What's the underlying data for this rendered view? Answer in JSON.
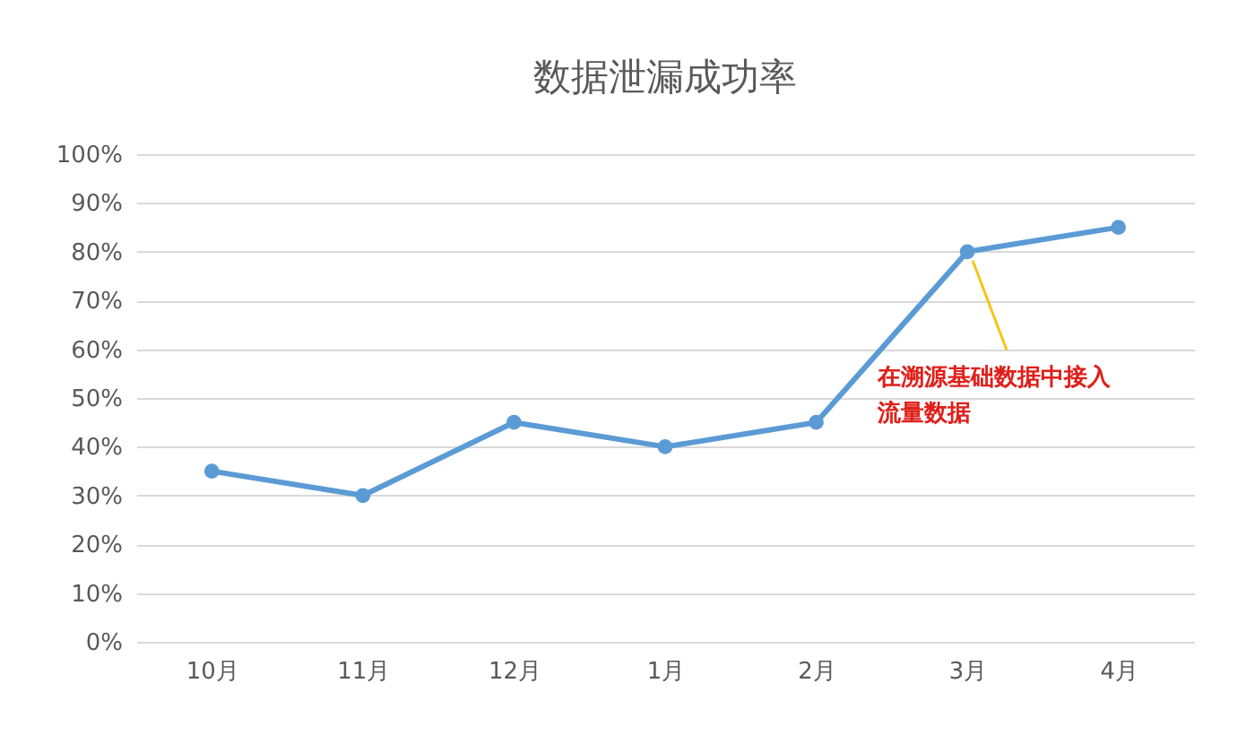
{
  "chart_data": {
    "type": "line",
    "title": "数据泄漏成功率",
    "categories": [
      "10月",
      "11月",
      "12月",
      "1月",
      "2月",
      "3月",
      "4月"
    ],
    "series": [
      {
        "color": "#5b9bd5",
        "values": [
          35,
          30,
          45,
          40,
          45,
          80,
          85
        ]
      }
    ],
    "ylim": [
      0,
      100
    ],
    "yticks": [
      {
        "value": 0,
        "label": "0%"
      },
      {
        "value": 10,
        "label": "10%"
      },
      {
        "value": 20,
        "label": "20%"
      },
      {
        "value": 30,
        "label": "30%"
      },
      {
        "value": 40,
        "label": "40%"
      },
      {
        "value": 50,
        "label": "50%"
      },
      {
        "value": 60,
        "label": "60%"
      },
      {
        "value": 70,
        "label": "70%"
      },
      {
        "value": 80,
        "label": "80%"
      },
      {
        "value": 90,
        "label": "90%"
      },
      {
        "value": 100,
        "label": "100%"
      }
    ],
    "grid": "y",
    "marker": "circle",
    "line_style": "solid",
    "legend": false,
    "annotations": [
      {
        "text": "在溯源基础数据中接入流量数据",
        "x": "3月",
        "y": 80
      }
    ]
  }
}
